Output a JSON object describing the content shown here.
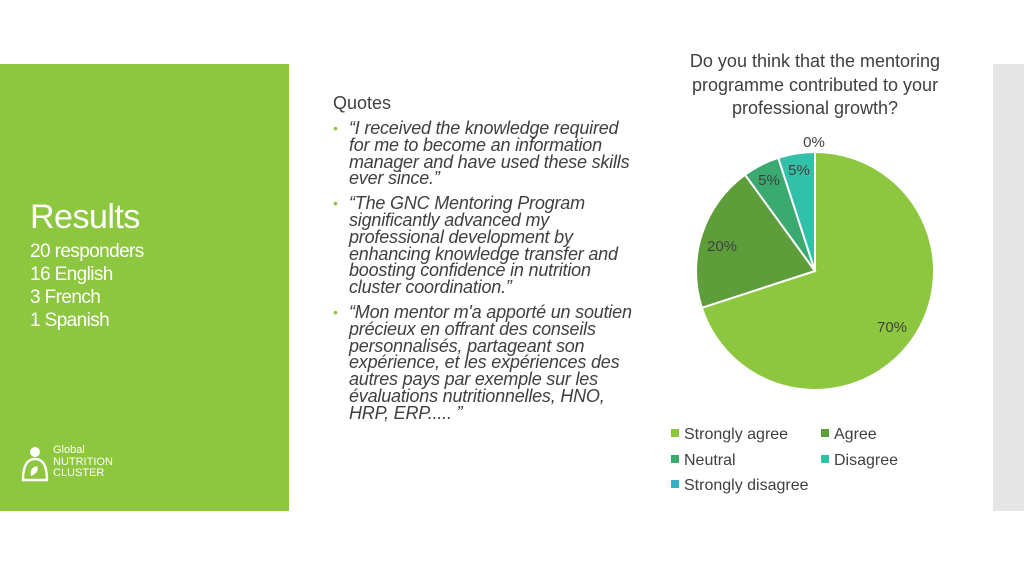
{
  "sidebar": {
    "title": "Results",
    "lines": [
      "20 responders",
      "16 English",
      "3 French",
      "1 Spanish"
    ],
    "logo_lines": [
      "Global",
      "NUTRITION",
      "CLUSTER"
    ]
  },
  "quotes": {
    "heading": "Quotes",
    "items": [
      "“I received the knowledge required for me to become an information manager and have used these skills ever since.”",
      "“The GNC Mentoring Program significantly advanced my professional development by enhancing knowledge transfer and boosting confidence in nutrition cluster coordination.”",
      "“Mon mentor m'a apporté un soutien précieux en offrant des conseils personnalisés, partageant son expérience, et les expériences des autres pays par exemple sur les évaluations nutritionnelles, HNO, HRP, ERP..... ”"
    ]
  },
  "chart_data": {
    "type": "pie",
    "title": "Do you think that the mentoring programme contributed to your professional growth?",
    "categories": [
      "Strongly agree",
      "Agree",
      "Neutral",
      "Disagree",
      "Strongly disagree"
    ],
    "values": [
      70,
      20,
      5,
      5,
      0
    ],
    "data_labels": [
      "70%",
      "20%",
      "5%",
      "5%",
      "0%"
    ],
    "colors": [
      "#8dc63f",
      "#5e9e3a",
      "#3aaa70",
      "#32c0a8",
      "#3aafc9"
    ],
    "legend_position": "bottom"
  }
}
